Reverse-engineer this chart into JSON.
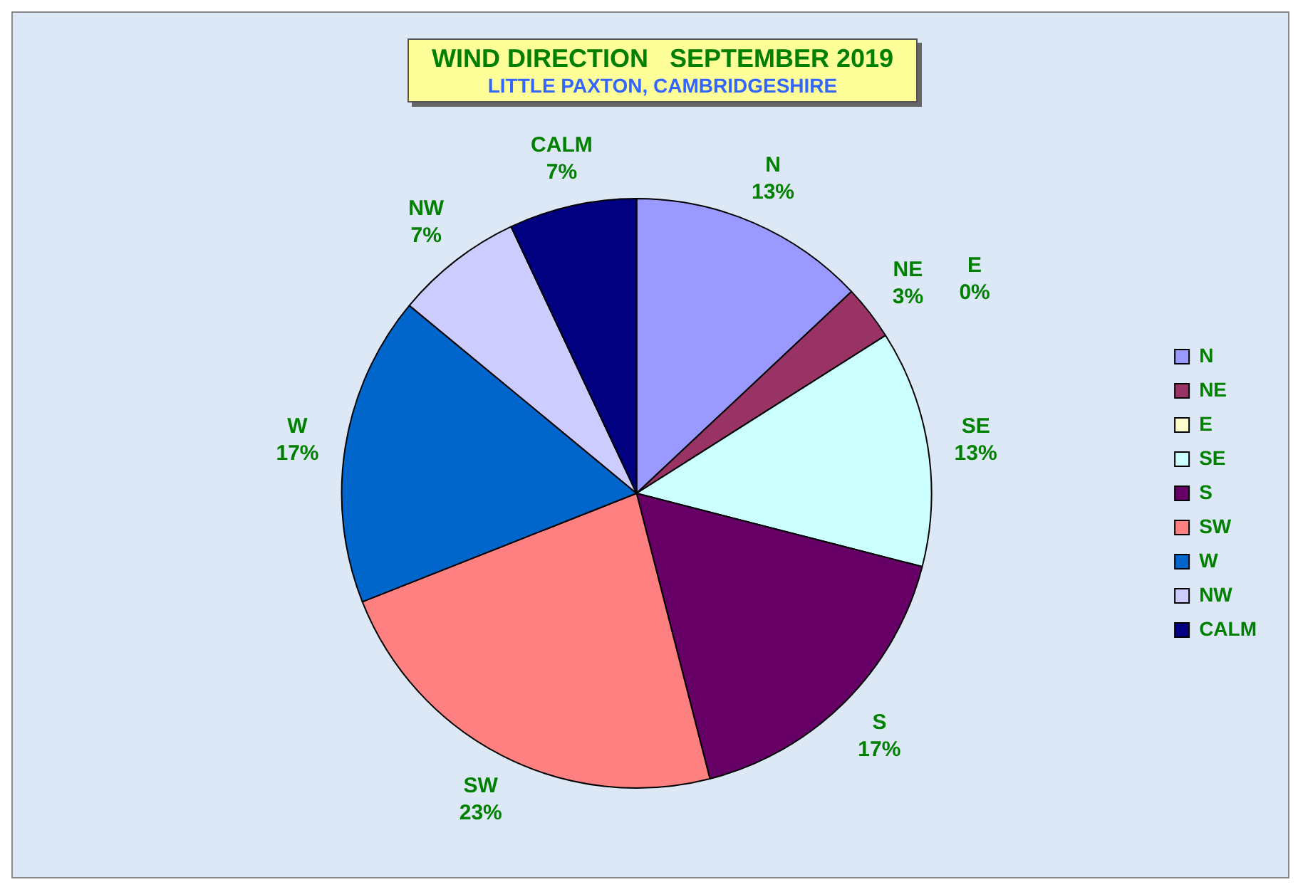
{
  "chart_data": {
    "type": "pie",
    "title": "WIND DIRECTION   SEPTEMBER 2019",
    "subtitle": "LITTLE PAXTON, CAMBRIDGESHIRE",
    "categories": [
      "N",
      "NE",
      "E",
      "SE",
      "S",
      "SW",
      "W",
      "NW",
      "CALM"
    ],
    "values": [
      13,
      3,
      0,
      13,
      17,
      23,
      17,
      7,
      7
    ],
    "value_labels": [
      "13%",
      "3%",
      "0%",
      "13%",
      "17%",
      "23%",
      "17%",
      "7%",
      "7%"
    ],
    "colors": [
      "#9999ff",
      "#993366",
      "#ffffcc",
      "#ccffff",
      "#660066",
      "#ff8080",
      "#0066cc",
      "#ccccff",
      "#000080"
    ],
    "legend": "right"
  }
}
